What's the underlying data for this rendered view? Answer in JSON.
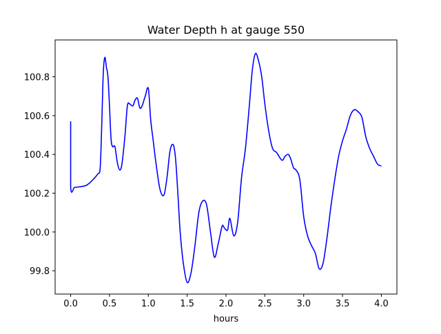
{
  "chart_data": {
    "type": "line",
    "title": "Water Depth h at gauge 550",
    "xlabel": "hours",
    "ylabel": "",
    "xlim": [
      -0.2,
      4.2
    ],
    "ylim": [
      99.68,
      100.99
    ],
    "xticks": [
      0.0,
      0.5,
      1.0,
      1.5,
      2.0,
      2.5,
      3.0,
      3.5,
      4.0
    ],
    "xtick_labels": [
      "0.0",
      "0.5",
      "1.0",
      "1.5",
      "2.0",
      "2.5",
      "3.0",
      "3.5",
      "4.0"
    ],
    "yticks": [
      99.8,
      100.0,
      100.2,
      100.4,
      100.6,
      100.8
    ],
    "ytick_labels": [
      "99.8",
      "100.0",
      "100.2",
      "100.4",
      "100.6",
      "100.8"
    ],
    "grid": false,
    "series": [
      {
        "color": "#0000ff",
        "x": [
          0.0,
          0.0,
          0.05,
          0.1,
          0.15,
          0.2,
          0.25,
          0.3,
          0.35,
          0.38,
          0.4,
          0.42,
          0.44,
          0.46,
          0.48,
          0.5,
          0.52,
          0.54,
          0.57,
          0.6,
          0.63,
          0.66,
          0.7,
          0.73,
          0.76,
          0.8,
          0.83,
          0.86,
          0.89,
          0.92,
          0.96,
          1.0,
          1.03,
          1.06,
          1.1,
          1.15,
          1.2,
          1.24,
          1.28,
          1.32,
          1.35,
          1.38,
          1.41,
          1.45,
          1.5,
          1.55,
          1.6,
          1.65,
          1.7,
          1.75,
          1.8,
          1.85,
          1.9,
          1.95,
          1.98,
          2.02,
          2.05,
          2.1,
          2.15,
          2.2,
          2.25,
          2.3,
          2.34,
          2.38,
          2.42,
          2.46,
          2.5,
          2.55,
          2.6,
          2.65,
          2.72,
          2.76,
          2.8,
          2.83,
          2.87,
          2.9,
          2.95,
          3.0,
          3.05,
          3.1,
          3.15,
          3.2,
          3.25,
          3.3,
          3.35,
          3.4,
          3.45,
          3.5,
          3.55,
          3.6,
          3.65,
          3.7,
          3.75,
          3.8,
          3.85,
          3.9,
          3.95,
          4.0
        ],
        "y": [
          100.57,
          100.23,
          100.23,
          100.232,
          100.235,
          100.24,
          100.255,
          100.275,
          100.3,
          100.33,
          100.55,
          100.82,
          100.9,
          100.85,
          100.8,
          100.65,
          100.48,
          100.44,
          100.44,
          100.36,
          100.32,
          100.35,
          100.5,
          100.65,
          100.66,
          100.65,
          100.68,
          100.69,
          100.64,
          100.65,
          100.7,
          100.74,
          100.58,
          100.48,
          100.35,
          100.22,
          100.19,
          100.28,
          100.42,
          100.45,
          100.38,
          100.2,
          100.0,
          99.84,
          99.74,
          99.79,
          99.93,
          100.1,
          100.16,
          100.14,
          100.0,
          99.87,
          99.94,
          100.03,
          100.02,
          100.01,
          100.07,
          99.98,
          100.05,
          100.28,
          100.43,
          100.65,
          100.84,
          100.92,
          100.88,
          100.8,
          100.66,
          100.52,
          100.43,
          100.41,
          100.37,
          100.39,
          100.4,
          100.38,
          100.33,
          100.32,
          100.27,
          100.08,
          99.98,
          99.93,
          99.89,
          99.81,
          99.84,
          99.97,
          100.13,
          100.27,
          100.39,
          100.47,
          100.53,
          100.6,
          100.63,
          100.62,
          100.59,
          100.49,
          100.43,
          100.39,
          100.35,
          100.34
        ]
      }
    ]
  }
}
